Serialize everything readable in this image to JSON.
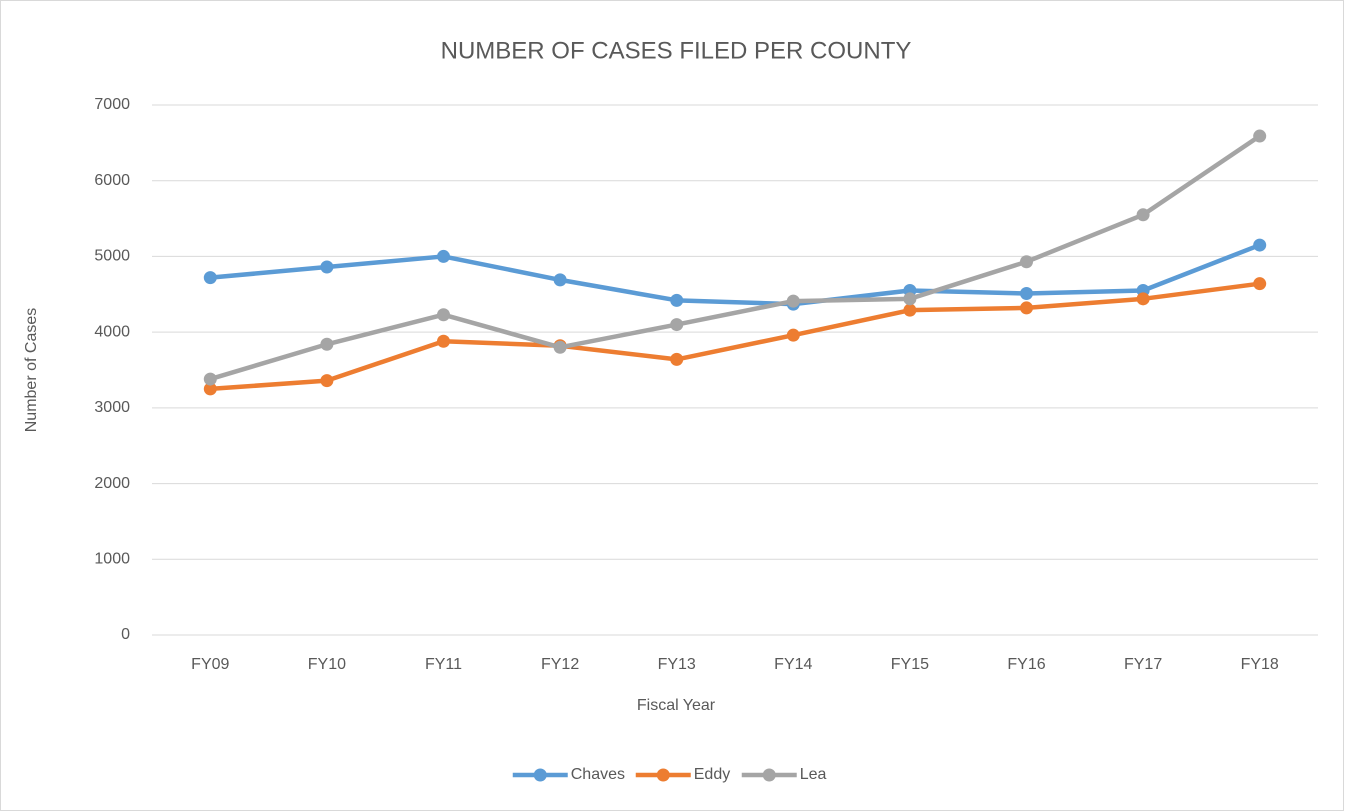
{
  "chart_data": {
    "type": "line",
    "title": "NUMBER OF CASES FILED PER COUNTY",
    "x_label": "Fiscal Year",
    "y_label": "Number of Cases",
    "categories": [
      "FY09",
      "FY10",
      "FY11",
      "FY12",
      "FY13",
      "FY14",
      "FY15",
      "FY16",
      "FY17",
      "FY18"
    ],
    "series": [
      {
        "name": "Chaves",
        "color": "#5b9bd5",
        "values": [
          4720,
          4860,
          5000,
          4690,
          4420,
          4370,
          4550,
          4510,
          4550,
          5150
        ]
      },
      {
        "name": "Eddy",
        "color": "#ed7d31",
        "values": [
          3250,
          3360,
          3880,
          3820,
          3640,
          3960,
          4290,
          4320,
          4440,
          4640
        ]
      },
      {
        "name": "Lea",
        "color": "#a5a5a5",
        "values": [
          3380,
          3840,
          4230,
          3800,
          4100,
          4410,
          4440,
          4930,
          5550,
          6590
        ]
      }
    ],
    "ylim": [
      0,
      7000
    ],
    "yticks": [
      0,
      1000,
      2000,
      3000,
      4000,
      5000,
      6000,
      7000
    ],
    "grid": true,
    "legend": "bottom"
  }
}
